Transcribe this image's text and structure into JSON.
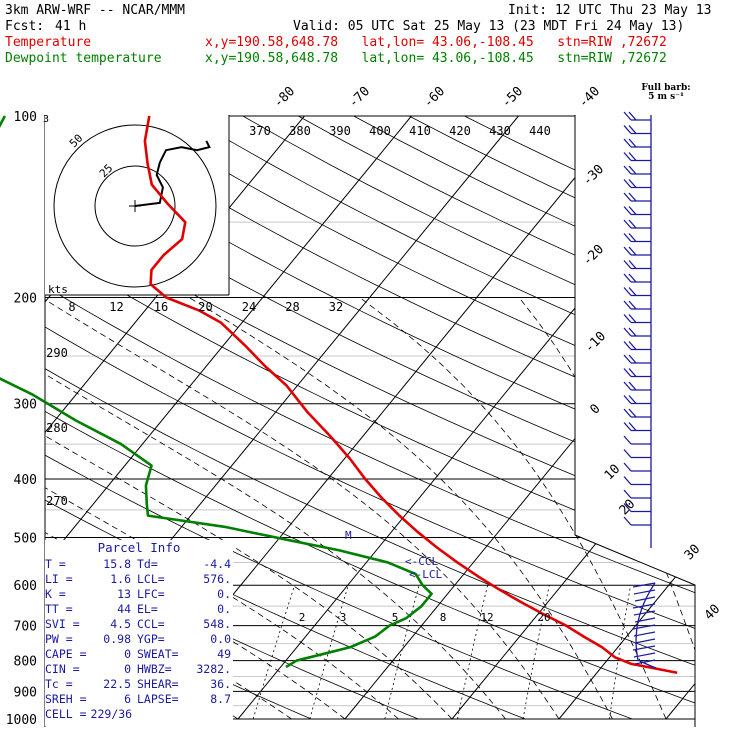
{
  "header": {
    "model": "3km ARW-WRF -- NCAR/MMM",
    "init": "Init: 12 UTC Thu 23 May 13",
    "fcst_label": "Fcst:",
    "fcst_value": "41 h",
    "valid": "Valid: 05 UTC Sat 25 May 13 (23 MDT Fri 24 May 13)",
    "temp_label": "Temperature",
    "temp_info": "x,y=190.58,648.78   lat,lon= 43.06,-108.45   stn=RIW ,72672",
    "dew_label": "Dewpoint temperature",
    "dew_info": "x,y=190.58,648.78   lat,lon= 43.06,-108.45   stn=RIW ,72672"
  },
  "barb_title": {
    "line1": "Full barb:",
    "line2": "5 m s⁻¹"
  },
  "parcel": {
    "title": "Parcel Info",
    "rows": [
      [
        "T",
        "15.8",
        "Td",
        "-4.4"
      ],
      [
        "LI",
        "1.6",
        "LCL",
        "576."
      ],
      [
        "K",
        "13",
        "LFC",
        "0."
      ],
      [
        "TT",
        "44",
        "EL",
        "0."
      ],
      [
        "SVI",
        "4.5",
        "CCL",
        "548."
      ],
      [
        "PW",
        "0.98",
        "YGP",
        "0.0"
      ],
      [
        "CAPE",
        "0",
        "SWEAT",
        "49"
      ],
      [
        "CIN",
        "0",
        "HWBZ",
        "3282."
      ],
      [
        "Tc",
        "22.5",
        "SHEAR",
        "36."
      ],
      [
        "SREH",
        "6",
        "LAPSE",
        "8.7"
      ],
      [
        "CELL",
        "229/36",
        "",
        ""
      ]
    ]
  },
  "colors": {
    "temperature": "#e00000",
    "dewpoint": "#008000",
    "parcel": "#1a1aa0",
    "barbs": "#1a1aa0"
  },
  "chart_data": {
    "type": "line",
    "pressure_labels": [
      "100",
      "200",
      "300",
      "400",
      "500",
      "600",
      "700",
      "800",
      "900",
      "1000"
    ],
    "isotherm_labels": [
      "-80",
      "-70",
      "-60",
      "-50",
      "-40",
      "-30",
      "-20",
      "-10",
      "0",
      "10",
      "20",
      "30",
      "40"
    ],
    "theta_labels": [
      "370",
      "380",
      "390",
      "400",
      "410",
      "420",
      "430",
      "440"
    ],
    "theta_left_labels": [
      "290",
      "280",
      "270"
    ],
    "hodo_speed_labels": [
      "8",
      "12",
      "16",
      "20",
      "24",
      "28",
      "32"
    ],
    "hodo_unit": "kts",
    "hodo_ring_labels": [
      "25",
      "50"
    ],
    "mixing_ratio_labels": [
      "2",
      "3",
      "5",
      "8",
      "12",
      "20"
    ],
    "parcel_marks": [
      "<-CCL",
      "<-LCL",
      "M"
    ],
    "series": [
      {
        "name": "Temperature",
        "color": "#e00000",
        "points": [
          [
            838,
            27.5
          ],
          [
            810,
            22.5
          ],
          [
            790,
            20.5
          ],
          [
            760,
            18.5
          ],
          [
            730,
            16.0
          ],
          [
            700,
            13.5
          ],
          [
            670,
            10.5
          ],
          [
            640,
            7.5
          ],
          [
            610,
            4.5
          ],
          [
            580,
            1.5
          ],
          [
            550,
            -1.5
          ],
          [
            520,
            -4.5
          ],
          [
            490,
            -7.5
          ],
          [
            460,
            -10.5
          ],
          [
            430,
            -13.5
          ],
          [
            400,
            -16.5
          ],
          [
            370,
            -19.5
          ],
          [
            340,
            -23.0
          ],
          [
            310,
            -27.0
          ],
          [
            280,
            -31.0
          ],
          [
            260,
            -34.5
          ],
          [
            240,
            -38.0
          ],
          [
            220,
            -42.0
          ],
          [
            210,
            -45.0
          ],
          [
            200,
            -49.0
          ],
          [
            190,
            -51.5
          ],
          [
            180,
            -52.5
          ],
          [
            170,
            -52.5
          ],
          [
            160,
            -52.0
          ],
          [
            150,
            -53.0
          ],
          [
            140,
            -56.0
          ],
          [
            130,
            -59.0
          ],
          [
            120,
            -61.0
          ],
          [
            110,
            -63.0
          ],
          [
            100,
            -64.5
          ]
        ]
      },
      {
        "name": "Dewpoint temperature",
        "color": "#008000",
        "points": [
          [
            820,
            -9.5
          ],
          [
            800,
            -9.0
          ],
          [
            780,
            -7.0
          ],
          [
            760,
            -5.0
          ],
          [
            730,
            -3.5
          ],
          [
            700,
            -3.0
          ],
          [
            680,
            -2.0
          ],
          [
            650,
            -1.5
          ],
          [
            620,
            -1.5
          ],
          [
            600,
            -3.0
          ],
          [
            575,
            -4.5
          ],
          [
            550,
            -8.0
          ],
          [
            525,
            -13.5
          ],
          [
            505,
            -19.0
          ],
          [
            480,
            -26.0
          ],
          [
            460,
            -34.0
          ],
          [
            440,
            -35.0
          ],
          [
            410,
            -36.5
          ],
          [
            380,
            -37.5
          ],
          [
            350,
            -42.0
          ],
          [
            320,
            -48.0
          ],
          [
            290,
            -54.0
          ],
          [
            270,
            -59.0
          ],
          [
            250,
            -64.0
          ],
          [
            230,
            -67.0
          ],
          [
            210,
            -70.0
          ],
          [
            190,
            -71.5
          ],
          [
            170,
            -73.0
          ],
          [
            150,
            -74.0
          ],
          [
            130,
            -75.5
          ],
          [
            115,
            -77.0
          ],
          [
            100,
            -78.0
          ]
        ]
      }
    ],
    "hodograph": {
      "points": [
        [
          0,
          0
        ],
        [
          8,
          1
        ],
        [
          9,
          6
        ],
        [
          7,
          10
        ],
        [
          8,
          14
        ],
        [
          10,
          18
        ],
        [
          15,
          19
        ],
        [
          20,
          18
        ],
        [
          24,
          19
        ],
        [
          23,
          21
        ]
      ]
    }
  }
}
